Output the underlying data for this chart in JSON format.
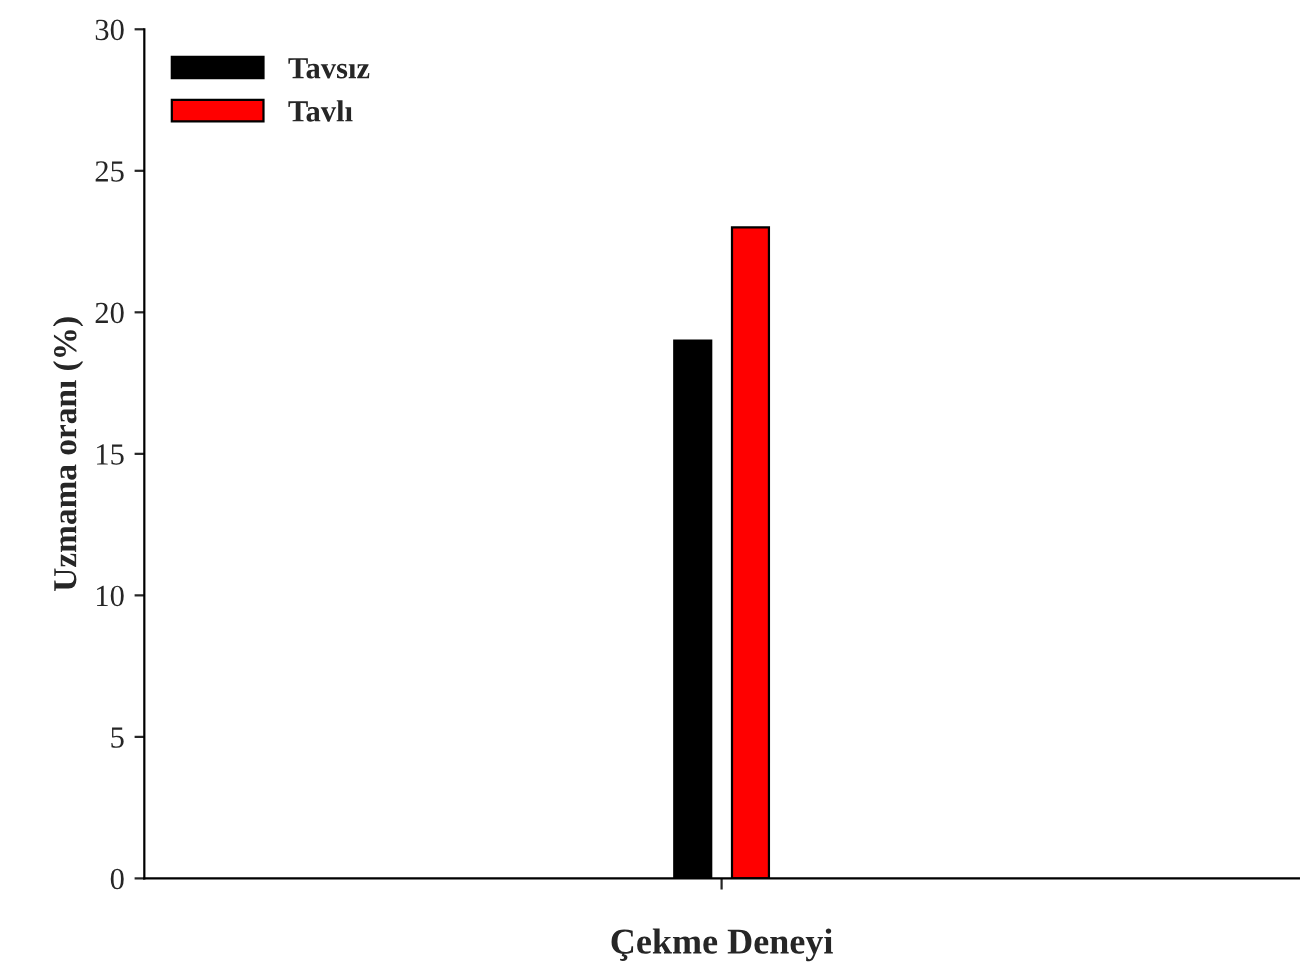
{
  "chart_data": {
    "type": "bar",
    "ylabel": "Uzmama oranı (%)",
    "categories": [
      "Çekme Deneyi"
    ],
    "series": [
      {
        "name": "Tavsız",
        "color": "#000000",
        "values": [
          19
        ]
      },
      {
        "name": "Tavlı",
        "color": "#ff0000",
        "values": [
          23
        ]
      }
    ],
    "ylim": [
      0,
      30
    ],
    "yticks": [
      0,
      5,
      10,
      15,
      20,
      25,
      30
    ],
    "grid": false,
    "legend": "top left"
  }
}
